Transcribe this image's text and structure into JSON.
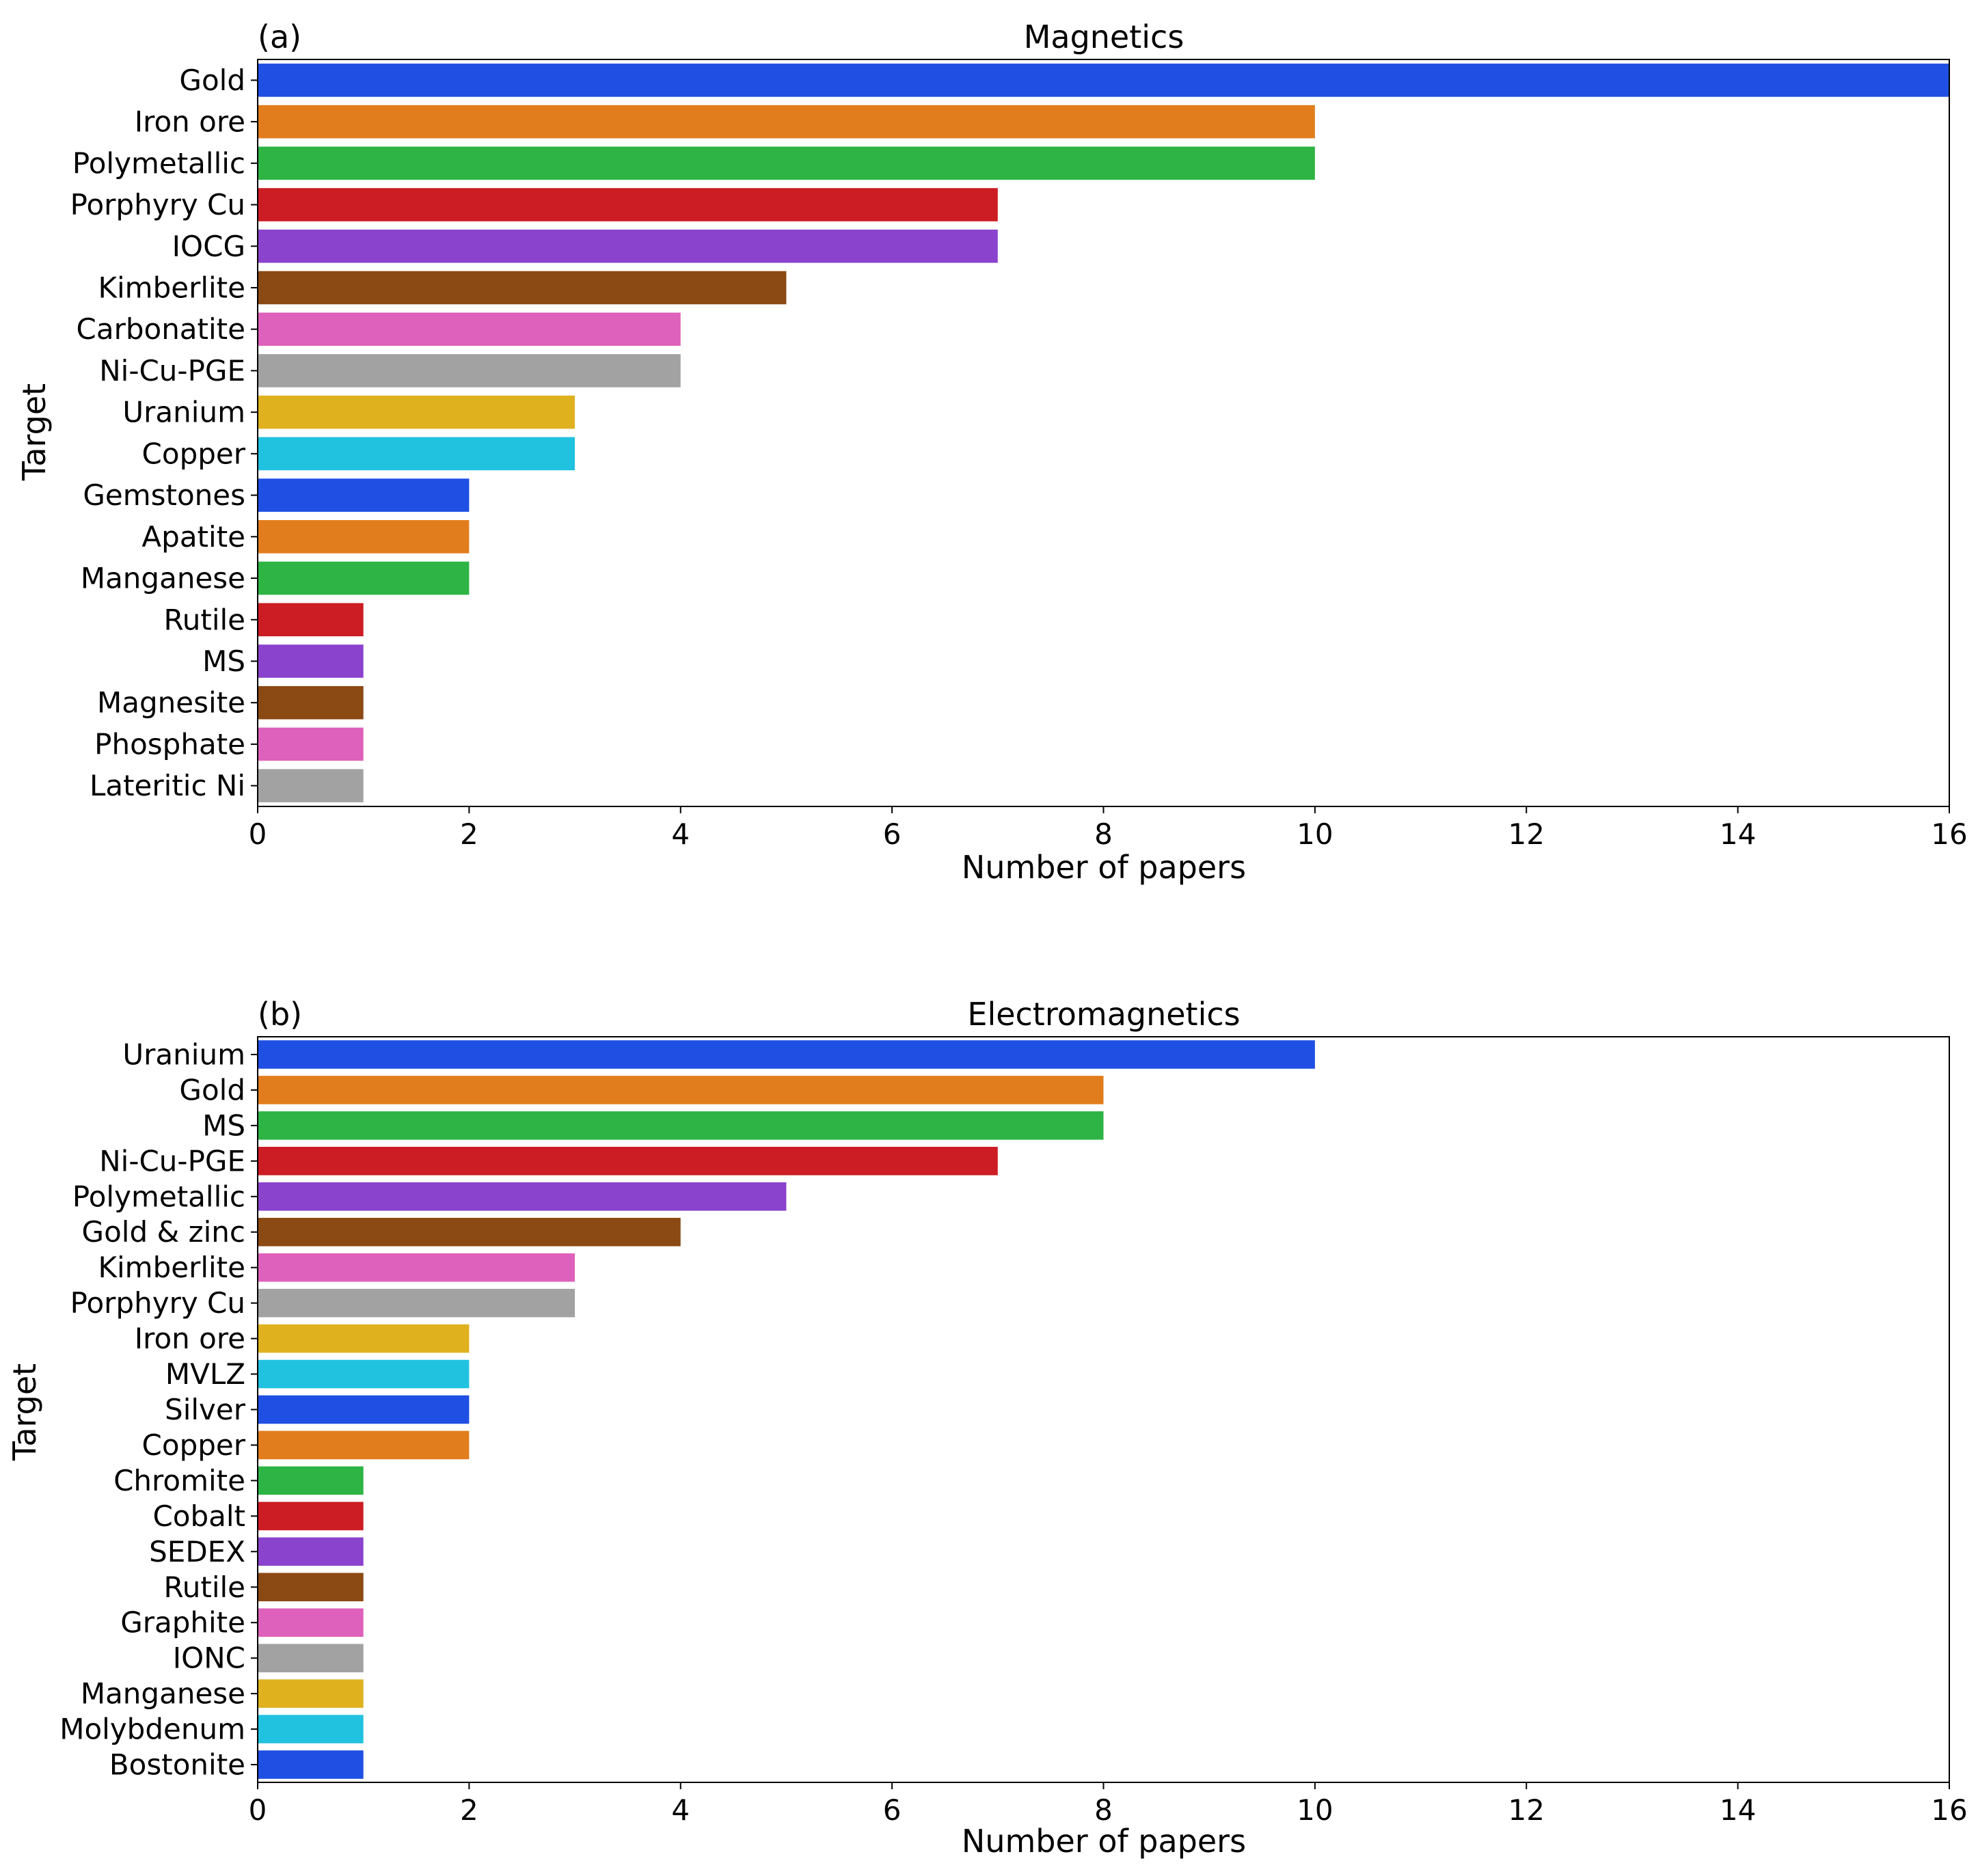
{
  "chart_data": [
    {
      "type": "bar",
      "orientation": "horizontal",
      "panel_label": "(a)",
      "title": "Magnetics",
      "xlabel": "Number of papers",
      "ylabel": "Target",
      "xlim": [
        0,
        16
      ],
      "xticks": [
        0,
        2,
        4,
        6,
        8,
        10,
        12,
        14,
        16
      ],
      "grid": false,
      "categories": [
        "Gold",
        "Iron ore",
        "Polymetallic",
        "Porphyry Cu",
        "IOCG",
        "Kimberlite",
        "Carbonatite",
        "Ni-Cu-PGE",
        "Uranium",
        "Copper",
        "Gemstones",
        "Apatite",
        "Manganese",
        "Rutile",
        "MS",
        "Magnesite",
        "Phosphate",
        "Lateritic Ni"
      ],
      "values": [
        16,
        10,
        10,
        7,
        7,
        5,
        4,
        4,
        3,
        3,
        2,
        2,
        2,
        1,
        1,
        1,
        1,
        1
      ],
      "colors": [
        "#1f4fe3",
        "#e17d1d",
        "#2eb444",
        "#cc1c24",
        "#8a43cc",
        "#8b4913",
        "#de61bb",
        "#a2a2a2",
        "#dfb11f",
        "#21c2e0",
        "#1f4fe3",
        "#e17d1d",
        "#2eb444",
        "#cc1c24",
        "#8a43cc",
        "#8b4913",
        "#de61bb",
        "#a2a2a2"
      ]
    },
    {
      "type": "bar",
      "orientation": "horizontal",
      "panel_label": "(b)",
      "title": "Electromagnetics",
      "xlabel": "Number of papers",
      "ylabel": "Target",
      "xlim": [
        0,
        16
      ],
      "xticks": [
        0,
        2,
        4,
        6,
        8,
        10,
        12,
        14,
        16
      ],
      "grid": false,
      "categories": [
        "Uranium",
        "Gold",
        "MS",
        "Ni-Cu-PGE",
        "Polymetallic",
        "Gold & zinc",
        "Kimberlite",
        "Porphyry Cu",
        "Iron ore",
        "MVLZ",
        "Silver",
        "Copper",
        "Chromite",
        "Cobalt",
        "SEDEX",
        "Rutile",
        "Graphite",
        "IONC",
        "Manganese",
        "Molybdenum",
        "Bostonite"
      ],
      "values": [
        10,
        8,
        8,
        7,
        5,
        4,
        3,
        3,
        2,
        2,
        2,
        2,
        1,
        1,
        1,
        1,
        1,
        1,
        1,
        1,
        1
      ],
      "colors": [
        "#1f4fe3",
        "#e17d1d",
        "#2eb444",
        "#cc1c24",
        "#8a43cc",
        "#8b4913",
        "#de61bb",
        "#a2a2a2",
        "#dfb11f",
        "#21c2e0",
        "#1f4fe3",
        "#e17d1d",
        "#2eb444",
        "#cc1c24",
        "#8a43cc",
        "#8b4913",
        "#de61bb",
        "#a2a2a2",
        "#dfb11f",
        "#21c2e0",
        "#1f4fe3"
      ]
    }
  ]
}
